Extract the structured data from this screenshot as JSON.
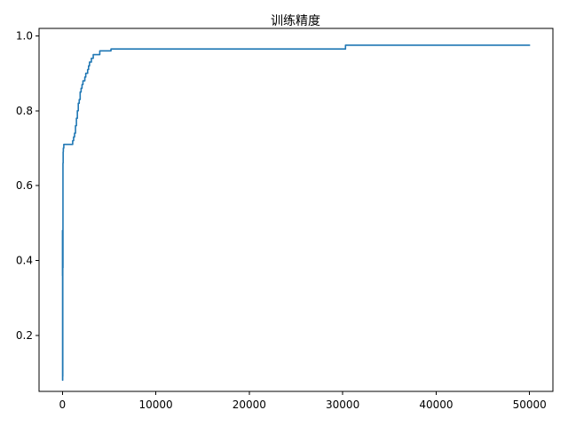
{
  "chart_data": {
    "type": "line",
    "title": "训练精度",
    "xlabel": "",
    "ylabel": "",
    "xlim": [
      -2500,
      52500
    ],
    "ylim": [
      0.05,
      1.02
    ],
    "grid": false,
    "legend": "none",
    "x_ticks": [
      0,
      10000,
      20000,
      30000,
      40000,
      50000
    ],
    "x_tick_labels": [
      "0",
      "10000",
      "20000",
      "30000",
      "40000",
      "50000"
    ],
    "y_ticks": [
      0.2,
      0.4,
      0.6,
      0.8,
      1.0
    ],
    "y_tick_labels": [
      "0.2",
      "0.4",
      "0.6",
      "0.8",
      "1.0"
    ],
    "series": [
      {
        "color": "#1f77b4",
        "x": [
          0,
          10,
          20,
          30,
          40,
          60,
          80,
          100,
          150,
          200,
          300,
          500,
          800,
          1000,
          1100,
          1200,
          1300,
          1400,
          1500,
          1600,
          1700,
          1800,
          1900,
          2000,
          2100,
          2200,
          2300,
          2400,
          2500,
          2600,
          2700,
          2800,
          2900,
          3000,
          3100,
          3200,
          3300,
          3400,
          3500,
          3700,
          3800,
          4000,
          4300,
          4500,
          4700,
          5000,
          5200,
          5500,
          6000,
          8000,
          10000,
          15000,
          20000,
          25000,
          30000,
          30300,
          30500,
          35000,
          40000,
          45000,
          50000
        ],
        "y": [
          0.36,
          0.48,
          0.08,
          0.09,
          0.38,
          0.66,
          0.69,
          0.7,
          0.71,
          0.71,
          0.71,
          0.71,
          0.71,
          0.71,
          0.72,
          0.73,
          0.74,
          0.76,
          0.78,
          0.8,
          0.82,
          0.83,
          0.85,
          0.86,
          0.87,
          0.88,
          0.88,
          0.89,
          0.9,
          0.9,
          0.91,
          0.92,
          0.93,
          0.93,
          0.94,
          0.94,
          0.95,
          0.95,
          0.95,
          0.95,
          0.95,
          0.96,
          0.96,
          0.96,
          0.96,
          0.96,
          0.965,
          0.965,
          0.965,
          0.965,
          0.965,
          0.965,
          0.965,
          0.965,
          0.965,
          0.975,
          0.975,
          0.975,
          0.975,
          0.975,
          0.975
        ]
      }
    ]
  }
}
